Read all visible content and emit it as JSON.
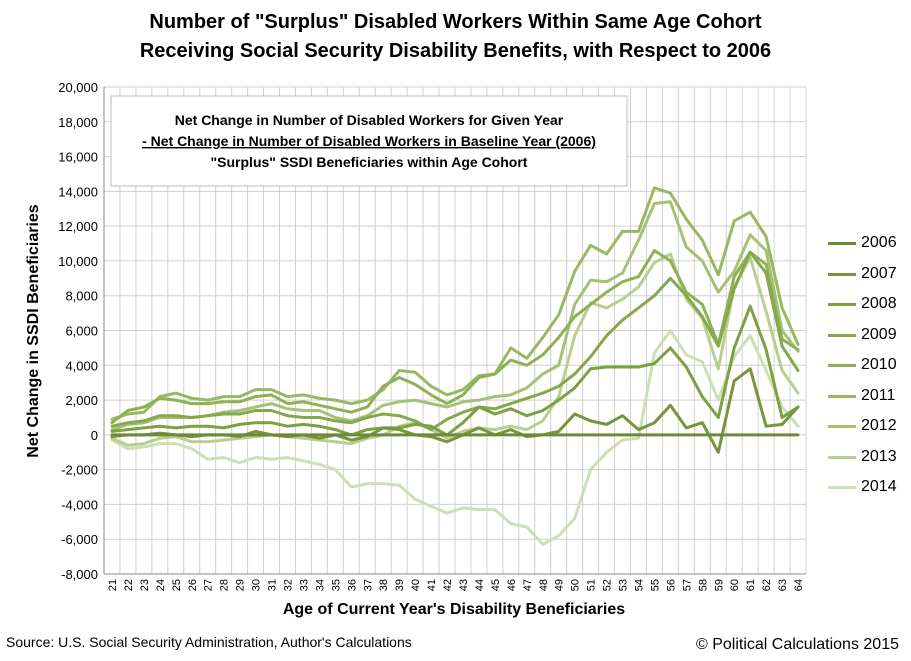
{
  "chart_data": {
    "type": "line",
    "title": "Number of \"Surplus\" Disabled Workers Within Same Age Cohort",
    "subtitle": "Receiving Social Security Disability Benefits, with Respect to 2006",
    "xlabel": "Age of Current Year's Disability Beneficiaries",
    "ylabel": "Net Change in SSDI Beneficiaries",
    "ylim": [
      -8000,
      20000
    ],
    "y_ticks": [
      "-8,000",
      "-6,000",
      "-4,000",
      "-2,000",
      "0",
      "2,000",
      "4,000",
      "6,000",
      "8,000",
      "10,000",
      "12,000",
      "14,000",
      "16,000",
      "18,000",
      "20,000"
    ],
    "x": [
      21,
      22,
      23,
      24,
      25,
      26,
      27,
      28,
      29,
      30,
      31,
      32,
      33,
      34,
      35,
      36,
      37,
      38,
      39,
      40,
      41,
      42,
      43,
      44,
      45,
      46,
      47,
      48,
      49,
      50,
      51,
      52,
      53,
      54,
      55,
      56,
      57,
      58,
      59,
      60,
      61,
      62,
      63,
      64
    ],
    "grid": true,
    "legend_position": "right",
    "annotation": {
      "line1": "Net Change in Number of Disabled Workers for Given Year",
      "line2": "- Net Change in Number of Disabled Workers in Baseline Year (2006)",
      "line3": "\"Surplus\"  SSDI Beneficiaries within Age Cohort"
    },
    "series": [
      {
        "name": "2006",
        "color": "#6d8a37",
        "values": [
          0,
          0,
          0,
          0,
          0,
          0,
          0,
          0,
          0,
          0,
          0,
          0,
          0,
          0,
          0,
          0,
          0,
          0,
          0,
          0,
          0,
          0,
          0,
          0,
          0,
          0,
          0,
          0,
          0,
          0,
          0,
          0,
          0,
          0,
          0,
          0,
          0,
          0,
          0,
          0,
          0,
          0,
          0,
          0
        ]
      },
      {
        "name": "2007",
        "color": "#76953c",
        "values": [
          -100,
          0,
          0,
          100,
          0,
          -100,
          0,
          0,
          -100,
          200,
          0,
          -100,
          0,
          -200,
          0,
          -300,
          -100,
          400,
          300,
          0,
          -100,
          -400,
          0,
          400,
          0,
          300,
          -100,
          0,
          200,
          1200,
          800,
          600,
          1100,
          300,
          700,
          1700,
          400,
          700,
          -1000,
          3100,
          3800,
          500,
          600,
          1600
        ]
      },
      {
        "name": "2008",
        "color": "#7ea043",
        "values": [
          200,
          300,
          400,
          500,
          400,
          500,
          500,
          400,
          600,
          700,
          700,
          500,
          600,
          500,
          300,
          0,
          300,
          400,
          400,
          600,
          500,
          0,
          700,
          1600,
          1200,
          1500,
          1100,
          1400,
          2000,
          2700,
          3800,
          3900,
          3900,
          3900,
          4100,
          5000,
          3900,
          2200,
          1000,
          5000,
          7400,
          4900,
          1000,
          1600
        ]
      },
      {
        "name": "2009",
        "color": "#86a84b",
        "values": [
          500,
          700,
          800,
          1100,
          1100,
          1000,
          1100,
          1200,
          1200,
          1400,
          1400,
          1100,
          1000,
          1000,
          800,
          700,
          1000,
          1200,
          1100,
          800,
          300,
          900,
          1300,
          1600,
          1500,
          1800,
          2100,
          2400,
          2800,
          3500,
          4500,
          5700,
          6600,
          7300,
          8000,
          9000,
          8000,
          6800,
          5100,
          8400,
          10500,
          9300,
          5100,
          3700
        ]
      },
      {
        "name": "2010",
        "color": "#8fb054",
        "values": [
          700,
          1400,
          1600,
          2100,
          2000,
          1800,
          1800,
          1900,
          1900,
          2200,
          2300,
          1800,
          1900,
          1700,
          1500,
          1300,
          1600,
          2800,
          3300,
          2900,
          2300,
          1800,
          2300,
          3300,
          3500,
          4300,
          4000,
          4600,
          5600,
          6800,
          7500,
          8200,
          8800,
          9100,
          10600,
          10000,
          8200,
          7500,
          5200,
          9100,
          10500,
          9800,
          5500,
          4900
        ]
      },
      {
        "name": "2011",
        "color": "#99b864",
        "values": [
          900,
          1200,
          1300,
          2200,
          2400,
          2100,
          2000,
          2200,
          2200,
          2600,
          2600,
          2200,
          2300,
          2100,
          2000,
          1800,
          2000,
          2600,
          3700,
          3600,
          2800,
          2300,
          2600,
          3400,
          3500,
          5000,
          4400,
          5600,
          6900,
          9400,
          10900,
          10400,
          11700,
          11700,
          14200,
          13900,
          12400,
          11200,
          9200,
          12300,
          12800,
          11400,
          7300,
          5200
        ]
      },
      {
        "name": "2012",
        "color": "#a5c176",
        "values": [
          300,
          600,
          700,
          1000,
          1000,
          1000,
          1100,
          1300,
          1400,
          1600,
          1800,
          1500,
          1400,
          1400,
          1000,
          800,
          1100,
          1700,
          1900,
          2000,
          1800,
          1600,
          1900,
          2000,
          2200,
          2300,
          2700,
          3500,
          4000,
          7500,
          8900,
          8800,
          9300,
          11200,
          13300,
          13400,
          10800,
          10000,
          8200,
          9400,
          11500,
          10600,
          6000,
          4800
        ]
      },
      {
        "name": "2013",
        "color": "#b7cf91",
        "values": [
          -200,
          -600,
          -500,
          -200,
          -100,
          -400,
          -400,
          -300,
          -200,
          -100,
          0,
          -100,
          -200,
          -300,
          -400,
          -500,
          -200,
          0,
          500,
          700,
          300,
          -200,
          200,
          400,
          300,
          500,
          300,
          800,
          2200,
          5700,
          7600,
          7300,
          7800,
          8500,
          9900,
          10400,
          7800,
          6700,
          3800,
          8500,
          10200,
          7100,
          3700,
          2400
        ]
      },
      {
        "name": "2014",
        "color": "#cde0b3",
        "values": [
          -300,
          -800,
          -700,
          -500,
          -500,
          -800,
          -1400,
          -1300,
          -1600,
          -1300,
          -1400,
          -1300,
          -1500,
          -1700,
          -2000,
          -3000,
          -2800,
          -2800,
          -2900,
          -3700,
          -4100,
          -4500,
          -4200,
          -4300,
          -4300,
          -5100,
          -5300,
          -6300,
          -5800,
          -4800,
          -2000,
          -1000,
          -300,
          -200,
          4700,
          6000,
          4600,
          4200,
          2000,
          4500,
          5700,
          3700,
          1600,
          500
        ]
      }
    ]
  },
  "header": {
    "title_line1": "Number of \"Surplus\" Disabled Workers Within Same Age Cohort",
    "title_line2": "Receiving Social Security Disability Benefits, with Respect to 2006"
  },
  "footer": {
    "source": "Source: U.S. Social Security Administration, Author's Calculations",
    "copyright": "© Political Calculations 2015"
  }
}
